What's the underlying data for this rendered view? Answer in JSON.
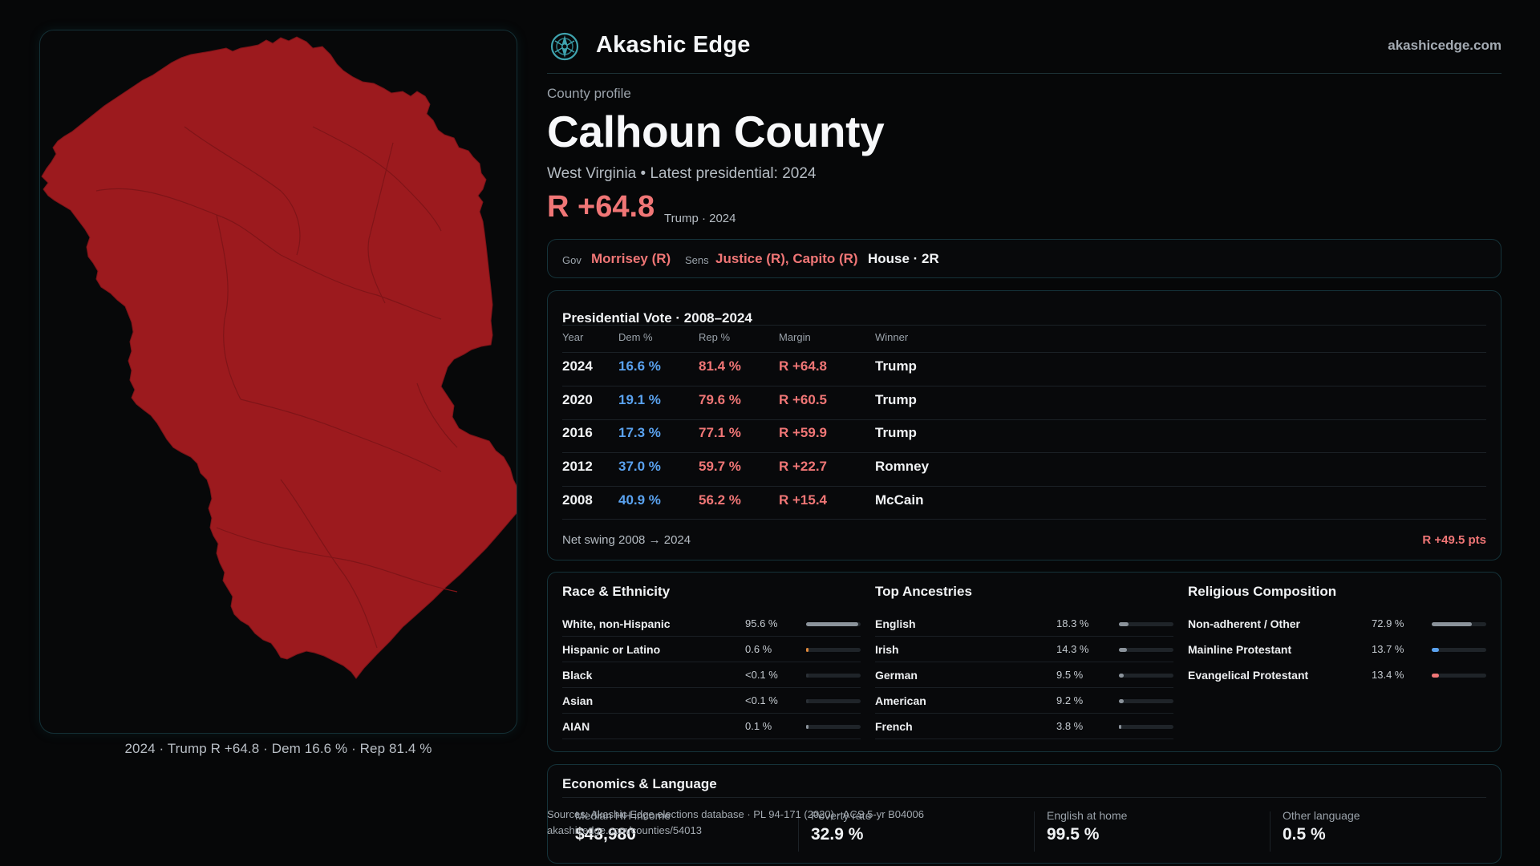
{
  "brand": {
    "name": "Akashic Edge",
    "url": "akashicedge.com",
    "logo_icon": "compass-icon"
  },
  "profile": {
    "kicker": "County profile",
    "title": "Calhoun County",
    "subline": "West Virginia • Latest presidential: 2024",
    "margin": "R +64.8",
    "margin_note": "Trump · 2024"
  },
  "officials": {
    "gov_label": "Gov",
    "gov": "Morrisey (R)",
    "sens_label": "Sens",
    "sens": "Justice (R), Capito (R)",
    "house": "House · 2R"
  },
  "presidential": {
    "title": "Presidential Vote · 2008–2024",
    "columns": [
      "Year",
      "Dem %",
      "Rep %",
      "Margin",
      "Winner"
    ],
    "rows": [
      {
        "year": "2024",
        "dem": "16.6 %",
        "rep": "81.4 %",
        "margin": "R +64.8",
        "winner": "Trump"
      },
      {
        "year": "2020",
        "dem": "19.1 %",
        "rep": "79.6 %",
        "margin": "R +60.5",
        "winner": "Trump"
      },
      {
        "year": "2016",
        "dem": "17.3 %",
        "rep": "77.1 %",
        "margin": "R +59.9",
        "winner": "Trump"
      },
      {
        "year": "2012",
        "dem": "37.0 %",
        "rep": "59.7 %",
        "margin": "R +22.7",
        "winner": "Romney"
      },
      {
        "year": "2008",
        "dem": "40.9 %",
        "rep": "56.2 %",
        "margin": "R +15.4",
        "winner": "McCain"
      }
    ],
    "swing_label": "Net swing 2008 → 2024",
    "swing_value": "R +49.5 pts"
  },
  "race": {
    "title": "Race & Ethnicity",
    "items": [
      {
        "label": "White, non-Hispanic",
        "pct": "95.6 %",
        "share": 0.956
      },
      {
        "label": "Hispanic or Latino",
        "pct": "0.6 %",
        "share": 0.006
      },
      {
        "label": "Black",
        "pct": "<0.1 %",
        "share": 0.0
      },
      {
        "label": "Asian",
        "pct": "<0.1 %",
        "share": 0.0
      },
      {
        "label": "AIAN",
        "pct": "0.1 %",
        "share": 0.001
      }
    ]
  },
  "ancestry": {
    "title": "Top Ancestries",
    "items": [
      {
        "label": "English",
        "pct": "18.3 %",
        "share": 0.183
      },
      {
        "label": "Irish",
        "pct": "14.3 %",
        "share": 0.143
      },
      {
        "label": "German",
        "pct": "9.5 %",
        "share": 0.095
      },
      {
        "label": "American",
        "pct": "9.2 %",
        "share": 0.092
      },
      {
        "label": "French",
        "pct": "3.8 %",
        "share": 0.038
      }
    ]
  },
  "religion": {
    "title": "Religious Composition",
    "items": [
      {
        "label": "Non-adherent / Other",
        "pct": "72.9 %",
        "share": 0.729
      },
      {
        "label": "Mainline Protestant",
        "pct": "13.7 %",
        "share": 0.137
      },
      {
        "label": "Evangelical Protestant",
        "pct": "13.4 %",
        "share": 0.134
      }
    ]
  },
  "economics": {
    "title": "Economics & Language",
    "items": [
      {
        "label": "Median HH income",
        "value": "$43,980"
      },
      {
        "label": "Poverty rate",
        "value": "32.9 %"
      },
      {
        "label": "English at home",
        "value": "99.5 %"
      },
      {
        "label": "Other language",
        "value": "0.5 %"
      }
    ]
  },
  "sources": {
    "line1": "Sources: Akashic Edge elections database · PL 94-171 (2020) · ACS 5-yr B04006",
    "line2": "akashicedge.com/counties/54013"
  },
  "map": {
    "caption": "2024 · Trump R +64.8 · Dem 16.6 % · Rep 81.4 %",
    "fill_color": "#9c1a1e",
    "border_color": "#7a1318"
  },
  "colors": {
    "dem": "#5aa2ef",
    "rep": "#f07676",
    "neutral_bar": "#8b939b",
    "accent_teal": "#15333a"
  }
}
